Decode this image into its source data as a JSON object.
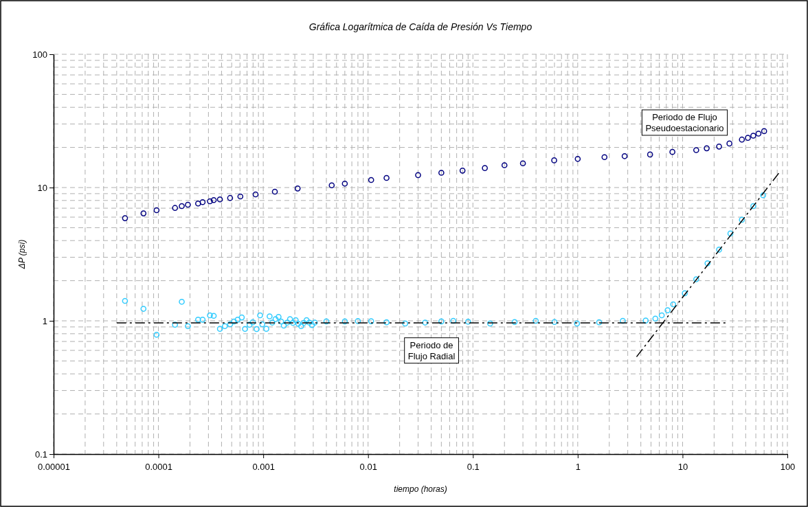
{
  "chart_data": {
    "type": "scatter",
    "title": "Gráfica Logarítmica de Caída de Presión Vs Tiempo",
    "xlabel": "tiempo (horas)",
    "ylabel": "ΔP (psi)",
    "log": "xy",
    "grid": true,
    "xlim": [
      1e-05,
      100
    ],
    "xticks": [
      {
        "value": 1e-05,
        "label": "0.00001"
      },
      0.0001,
      0.001,
      0.01,
      0.1,
      1,
      10,
      100
    ],
    "ylim": [
      0.1,
      100
    ],
    "yticks": [
      0.1,
      1,
      10,
      100
    ],
    "annotations": [
      "Periodo de\nFlujo Radial",
      "Periodo de Flujo\nPseudoestacionario"
    ],
    "series": [
      {
        "marker": "circle",
        "color": "#000080",
        "x": [
          4.8e-05,
          7.2e-05,
          9.6e-05,
          0.000144,
          0.000167,
          0.000191,
          0.000239,
          0.000264,
          0.00031,
          0.000337,
          0.000386,
          0.000483,
          0.000605,
          0.000845,
          0.00129,
          0.00213,
          0.0045,
          0.006,
          0.0107,
          0.015,
          0.03,
          0.05,
          0.0796,
          0.13,
          0.2,
          0.3,
          0.596,
          1.0,
          1.8,
          2.8,
          4.9,
          8,
          13.5,
          17,
          22.3,
          28,
          36.8,
          42,
          47.3,
          53,
          60
        ],
        "values": [
          5.89,
          6.4,
          6.76,
          7.03,
          7.26,
          7.43,
          7.59,
          7.77,
          7.89,
          8.05,
          8.15,
          8.35,
          8.57,
          8.88,
          9.31,
          9.84,
          10.4,
          10.7,
          11.4,
          11.8,
          12.4,
          12.9,
          13.4,
          14.0,
          14.7,
          15.2,
          16.0,
          16.4,
          16.9,
          17.2,
          17.7,
          18.5,
          19.1,
          19.7,
          20.3,
          21.4,
          22.9,
          23.6,
          24.5,
          25.4,
          26.5
        ]
      },
      {
        "marker": "circle",
        "color": "#33ccff",
        "x": [
          4.8e-05,
          7.2e-05,
          9.6e-05,
          0.000144,
          0.000167,
          0.000191,
          0.000239,
          0.000264,
          0.00031,
          0.000337,
          0.000386,
          0.00043,
          0.000483,
          0.000526,
          0.00057,
          0.000624,
          0.00067,
          0.00074,
          0.000795,
          0.000865,
          0.000933,
          0.00098,
          0.00107,
          0.00115,
          0.00122,
          0.00131,
          0.0014,
          0.00148,
          0.00157,
          0.0017,
          0.0018,
          0.00192,
          0.00204,
          0.00216,
          0.0023,
          0.00244,
          0.00259,
          0.00275,
          0.00292,
          0.0031,
          0.004,
          0.006,
          0.008,
          0.0107,
          0.015,
          0.0226,
          0.035,
          0.05,
          0.065,
          0.09,
          0.146,
          0.25,
          0.398,
          0.6,
          0.984,
          1.6,
          2.69,
          4.45,
          5.5,
          6.33,
          7.2,
          8.14,
          10.5,
          13.5,
          17.3,
          22.3,
          28.6,
          36.8,
          47.3,
          58.7
        ],
        "values": [
          1.41,
          1.23,
          0.786,
          0.935,
          1.39,
          0.912,
          1.02,
          1.02,
          1.1,
          1.09,
          0.871,
          0.912,
          0.942,
          0.988,
          1.02,
          1.06,
          0.87,
          0.935,
          0.975,
          0.867,
          1.1,
          0.942,
          0.871,
          1.08,
          0.97,
          1.03,
          1.07,
          0.988,
          0.92,
          0.97,
          1.03,
          0.965,
          1.01,
          0.95,
          0.912,
          0.965,
          1.01,
          0.97,
          0.93,
          0.97,
          0.99,
          0.99,
          0.995,
          0.993,
          0.975,
          0.955,
          0.97,
          0.99,
          1.0,
          0.985,
          0.955,
          0.98,
          1.0,
          0.98,
          0.955,
          0.975,
          1.0,
          1.005,
          1.04,
          1.1,
          1.2,
          1.33,
          1.61,
          2.05,
          2.7,
          3.42,
          4.52,
          5.73,
          7.26,
          8.75
        ]
      },
      {
        "type": "line",
        "marker": "none",
        "line_style": "dashed",
        "color": "#000000",
        "x": [
          4e-05,
          27.2
        ],
        "values": [
          0.965,
          0.965
        ]
      },
      {
        "type": "line",
        "marker": "none",
        "line_style": "dashed",
        "color": "#000000",
        "x": [
          3.64,
          86.5
        ],
        "values": [
          0.537,
          13.4
        ]
      }
    ]
  }
}
